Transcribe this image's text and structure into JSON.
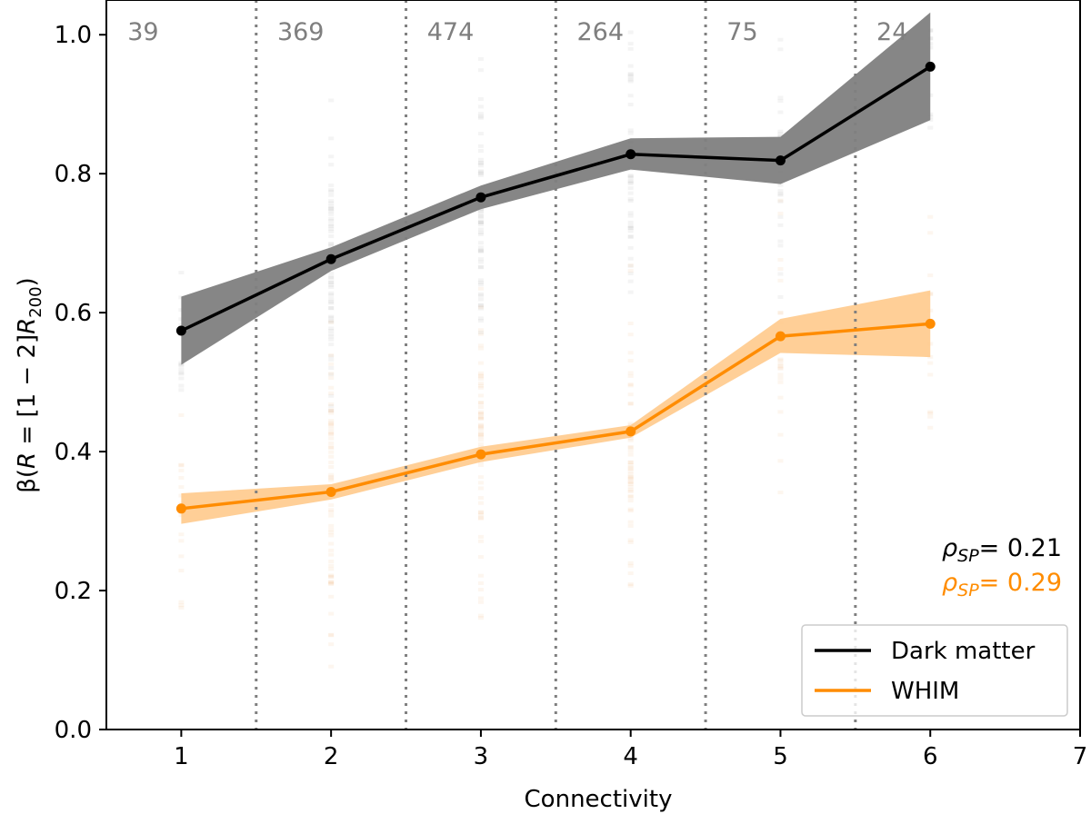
{
  "chart_data": {
    "type": "line",
    "xlabel": "Connectivity",
    "ylabel": "β(R = [1 − 2]R200)",
    "ylabel_parts": {
      "pre": "β(",
      "r1": "R",
      "mid": " = [1 − 2]",
      "r2": "R",
      "sub": "200",
      "post": ")"
    },
    "xlim": [
      0.5,
      7
    ],
    "ylim": [
      0.0,
      1.05
    ],
    "xticks": [
      1,
      2,
      3,
      4,
      5,
      6,
      7
    ],
    "yticks": [
      "0.0",
      "0.2",
      "0.4",
      "0.6",
      "0.8",
      "1.0"
    ],
    "ytick_values": [
      0.0,
      0.2,
      0.4,
      0.6,
      0.8,
      1.0
    ],
    "bin_boundaries": [
      1.5,
      2.5,
      3.5,
      4.5,
      5.5
    ],
    "bin_counts": [
      {
        "x": 0.75,
        "label": "39"
      },
      {
        "x": 1.75,
        "label": "369"
      },
      {
        "x": 2.75,
        "label": "474"
      },
      {
        "x": 3.75,
        "label": "264"
      },
      {
        "x": 4.75,
        "label": "75"
      },
      {
        "x": 5.75,
        "label": "24"
      }
    ],
    "x": [
      1,
      2,
      3,
      4,
      5,
      6
    ],
    "series": [
      {
        "name": "Dark matter",
        "color": "#000000",
        "band_color": "#808080",
        "values": [
          0.574,
          0.677,
          0.766,
          0.828,
          0.819,
          0.954
        ],
        "lower": [
          0.525,
          0.66,
          0.749,
          0.806,
          0.785,
          0.877
        ],
        "upper": [
          0.623,
          0.694,
          0.783,
          0.851,
          0.853,
          1.032
        ],
        "scatter_color": "#8a8a8a"
      },
      {
        "name": "WHIM",
        "color": "#ff8c00",
        "band_color": "#ffc785",
        "values": [
          0.318,
          0.342,
          0.396,
          0.429,
          0.566,
          0.584
        ],
        "lower": [
          0.296,
          0.331,
          0.385,
          0.42,
          0.542,
          0.536
        ],
        "upper": [
          0.34,
          0.353,
          0.407,
          0.438,
          0.591,
          0.632
        ],
        "scatter_color": "#e8a050"
      }
    ],
    "annotations": [
      {
        "prefix": "ρ",
        "sub": "SP",
        "value": "= 0.21",
        "color": "#000000"
      },
      {
        "prefix": "ρ",
        "sub": "SP",
        "value": "= 0.29",
        "color": "#ff8c00"
      }
    ],
    "legend": {
      "position": "bottom-right",
      "entries": [
        "Dark matter",
        "WHIM"
      ]
    }
  }
}
